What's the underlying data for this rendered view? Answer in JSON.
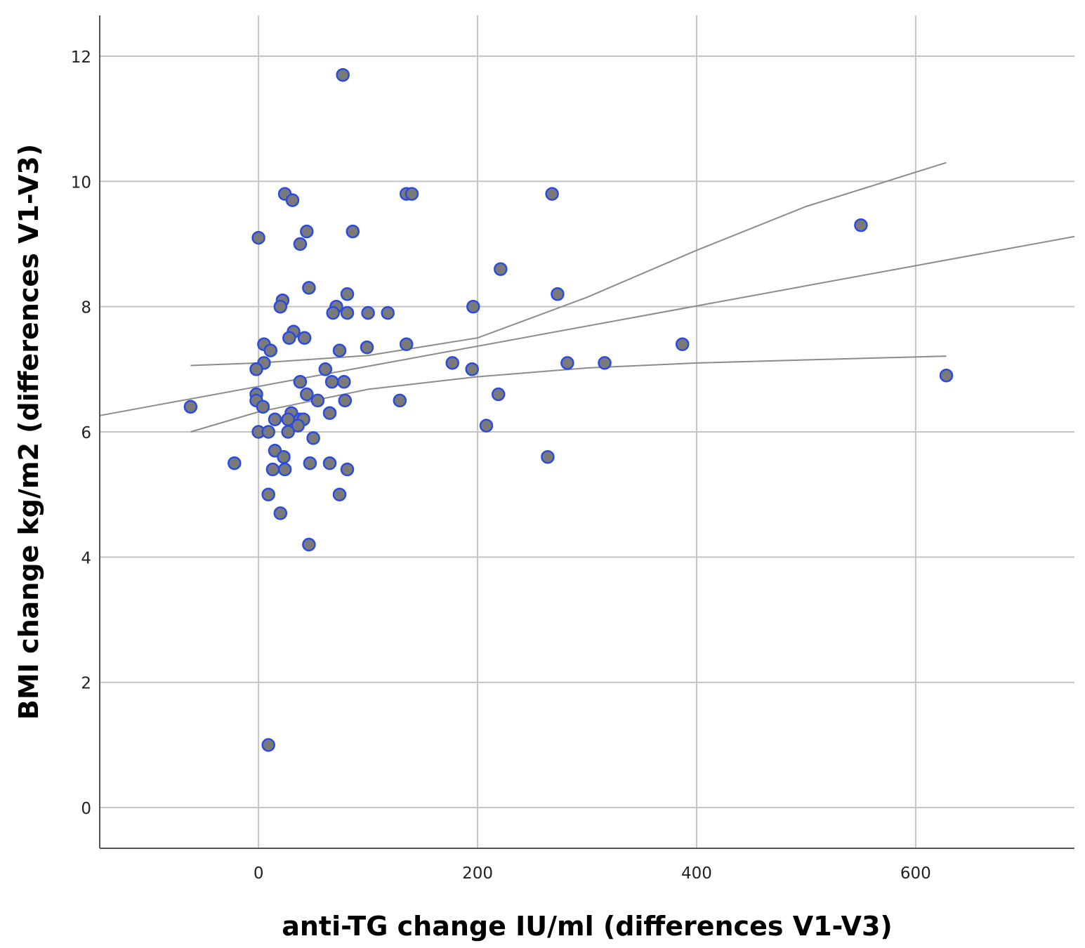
{
  "chart_data": {
    "type": "scatter",
    "title": "",
    "xlabel": "anti-TG change IU/ml (differences V1-V3)",
    "ylabel": "BMI change kg/m2 (differences V1-V3)",
    "xlim": [
      -145,
      745
    ],
    "ylim": [
      -0.65,
      12.65
    ],
    "xticks": [
      0,
      200,
      400,
      600
    ],
    "yticks": [
      0,
      2,
      4,
      6,
      8,
      10,
      12
    ],
    "grid": true,
    "colors": {
      "marker_fill": "#7a7a7a",
      "marker_edge": "#2a4be0",
      "fit_line": "#8c8c8c",
      "grid": "#c4c4c4"
    },
    "series": [
      {
        "name": "observations",
        "points": [
          {
            "x": 77,
            "y": 11.7
          },
          {
            "x": 24,
            "y": 9.8
          },
          {
            "x": 31,
            "y": 9.7
          },
          {
            "x": 135,
            "y": 9.8
          },
          {
            "x": 140,
            "y": 9.8
          },
          {
            "x": 268,
            "y": 9.8
          },
          {
            "x": 0,
            "y": 9.1
          },
          {
            "x": 44,
            "y": 9.2
          },
          {
            "x": 86,
            "y": 9.2
          },
          {
            "x": 38,
            "y": 9.0
          },
          {
            "x": 550,
            "y": 9.3
          },
          {
            "x": 221,
            "y": 8.6
          },
          {
            "x": 46,
            "y": 8.3
          },
          {
            "x": 81,
            "y": 8.2
          },
          {
            "x": 273,
            "y": 8.2
          },
          {
            "x": 22,
            "y": 8.1
          },
          {
            "x": 20,
            "y": 8.0
          },
          {
            "x": 71,
            "y": 8.0
          },
          {
            "x": 196,
            "y": 8.0
          },
          {
            "x": 68,
            "y": 7.9
          },
          {
            "x": 81,
            "y": 7.9
          },
          {
            "x": 100,
            "y": 7.9
          },
          {
            "x": 118,
            "y": 7.9
          },
          {
            "x": 32,
            "y": 7.6
          },
          {
            "x": 28,
            "y": 7.5
          },
          {
            "x": 42,
            "y": 7.5
          },
          {
            "x": 5,
            "y": 7.4
          },
          {
            "x": 135,
            "y": 7.4
          },
          {
            "x": 387,
            "y": 7.4
          },
          {
            "x": 11,
            "y": 7.3
          },
          {
            "x": 74,
            "y": 7.3
          },
          {
            "x": 99,
            "y": 7.35
          },
          {
            "x": 5,
            "y": 7.1
          },
          {
            "x": 177,
            "y": 7.1
          },
          {
            "x": 282,
            "y": 7.1
          },
          {
            "x": 316,
            "y": 7.1
          },
          {
            "x": -2,
            "y": 7.0
          },
          {
            "x": 61,
            "y": 7.0
          },
          {
            "x": 195,
            "y": 7.0
          },
          {
            "x": 628,
            "y": 6.9
          },
          {
            "x": 38,
            "y": 6.8
          },
          {
            "x": 67,
            "y": 6.8
          },
          {
            "x": 78,
            "y": 6.8
          },
          {
            "x": -2,
            "y": 6.6
          },
          {
            "x": 44,
            "y": 6.6
          },
          {
            "x": 219,
            "y": 6.6
          },
          {
            "x": -2,
            "y": 6.5
          },
          {
            "x": 54,
            "y": 6.5
          },
          {
            "x": 79,
            "y": 6.5
          },
          {
            "x": 129,
            "y": 6.5
          },
          {
            "x": -62,
            "y": 6.4
          },
          {
            "x": 4,
            "y": 6.4
          },
          {
            "x": 30,
            "y": 6.3
          },
          {
            "x": 65,
            "y": 6.3
          },
          {
            "x": 15,
            "y": 6.2
          },
          {
            "x": 27,
            "y": 6.2
          },
          {
            "x": 38,
            "y": 6.2
          },
          {
            "x": 41,
            "y": 6.2
          },
          {
            "x": 36,
            "y": 6.1
          },
          {
            "x": 208,
            "y": 6.1
          },
          {
            "x": 0,
            "y": 6.0
          },
          {
            "x": 9,
            "y": 6.0
          },
          {
            "x": 27,
            "y": 6.0
          },
          {
            "x": 50,
            "y": 5.9
          },
          {
            "x": 15,
            "y": 5.7
          },
          {
            "x": 23,
            "y": 5.6
          },
          {
            "x": 264,
            "y": 5.6
          },
          {
            "x": -22,
            "y": 5.5
          },
          {
            "x": 47,
            "y": 5.5
          },
          {
            "x": 65,
            "y": 5.5
          },
          {
            "x": 13,
            "y": 5.4
          },
          {
            "x": 24,
            "y": 5.4
          },
          {
            "x": 81,
            "y": 5.4
          },
          {
            "x": 9,
            "y": 5.0
          },
          {
            "x": 74,
            "y": 5.0
          },
          {
            "x": 20,
            "y": 4.7
          },
          {
            "x": 46,
            "y": 4.2
          },
          {
            "x": 9,
            "y": 1.0
          }
        ]
      }
    ],
    "fit_lines": [
      {
        "name": "linear-fit",
        "points": [
          [
            -145,
            6.26
          ],
          [
            745,
            9.12
          ]
        ]
      },
      {
        "name": "upper-confidence-band",
        "points": [
          [
            -62,
            7.06
          ],
          [
            0,
            7.1
          ],
          [
            100,
            7.22
          ],
          [
            200,
            7.5
          ],
          [
            300,
            8.15
          ],
          [
            400,
            8.9
          ],
          [
            500,
            9.6
          ],
          [
            628,
            10.3
          ]
        ]
      },
      {
        "name": "lower-confidence-band",
        "points": [
          [
            -62,
            6.0
          ],
          [
            0,
            6.32
          ],
          [
            100,
            6.68
          ],
          [
            200,
            6.88
          ],
          [
            300,
            7.02
          ],
          [
            400,
            7.1
          ],
          [
            500,
            7.15
          ],
          [
            628,
            7.21
          ]
        ]
      }
    ]
  }
}
